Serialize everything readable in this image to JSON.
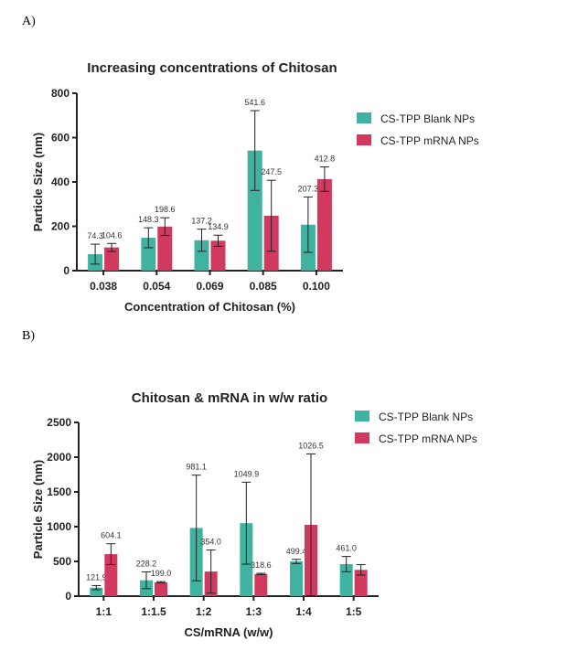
{
  "panels": [
    {
      "label": "A)"
    },
    {
      "label": "B)"
    }
  ],
  "colors": {
    "blank": "#3fb39f",
    "mrna": "#d1395f",
    "axis": "#222222"
  },
  "chart_data": [
    {
      "type": "bar",
      "title": "Increasing concentrations of Chitosan",
      "xlabel": "Concentration of Chitosan (%)",
      "ylabel": "Particle Size (nm)",
      "ylim": [
        0,
        800
      ],
      "yticks": [
        0,
        200,
        400,
        600,
        800
      ],
      "categories": [
        "0.038",
        "0.054",
        "0.069",
        "0.085",
        "0.100"
      ],
      "legend_position": "right",
      "series": [
        {
          "name": "CS-TPP Blank NPs",
          "values": [
            74.3,
            148.3,
            137.2,
            541.6,
            207.3
          ],
          "errors": [
            45,
            45,
            50,
            180,
            125
          ],
          "labels": [
            "74.3",
            "148.3",
            "137.2",
            "541.6",
            "207.3"
          ]
        },
        {
          "name": "CS-TPP mRNA NPs",
          "values": [
            104.6,
            198.6,
            134.9,
            247.5,
            412.8
          ],
          "errors": [
            18,
            40,
            25,
            160,
            55
          ],
          "labels": [
            "104.6",
            "198.6",
            "134.9",
            "247.5",
            "412.8"
          ]
        }
      ]
    },
    {
      "type": "bar",
      "title": "Chitosan & mRNA in w/w ratio",
      "xlabel": "CS/mRNA (w/w)",
      "ylabel": "Particle Size (nm)",
      "ylim": [
        0,
        2500
      ],
      "yticks": [
        0,
        500,
        1000,
        1500,
        2000,
        2500
      ],
      "categories": [
        "1:1",
        "1:1.5",
        "1:2",
        "1:3",
        "1:4",
        "1:5"
      ],
      "legend_position": "top-right",
      "series": [
        {
          "name": "CS-TPP Blank NPs",
          "values": [
            121.9,
            228.2,
            981.1,
            1049.9,
            499.4,
            461.0
          ],
          "errors": [
            30,
            120,
            760,
            590,
            30,
            110
          ],
          "labels": [
            "121.9",
            "228.2",
            "981.1",
            "1049.9",
            "499.4",
            "461.0"
          ]
        },
        {
          "name": "CS-TPP mRNA NPs",
          "values": [
            604.1,
            199.0,
            354.0,
            318.6,
            1026.5,
            378.0
          ],
          "errors": [
            150,
            10,
            310,
            10,
            1020,
            75
          ],
          "labels": [
            "604.1",
            "199.0",
            "354.0",
            "318.6",
            "1026.5",
            ""
          ]
        }
      ]
    }
  ]
}
